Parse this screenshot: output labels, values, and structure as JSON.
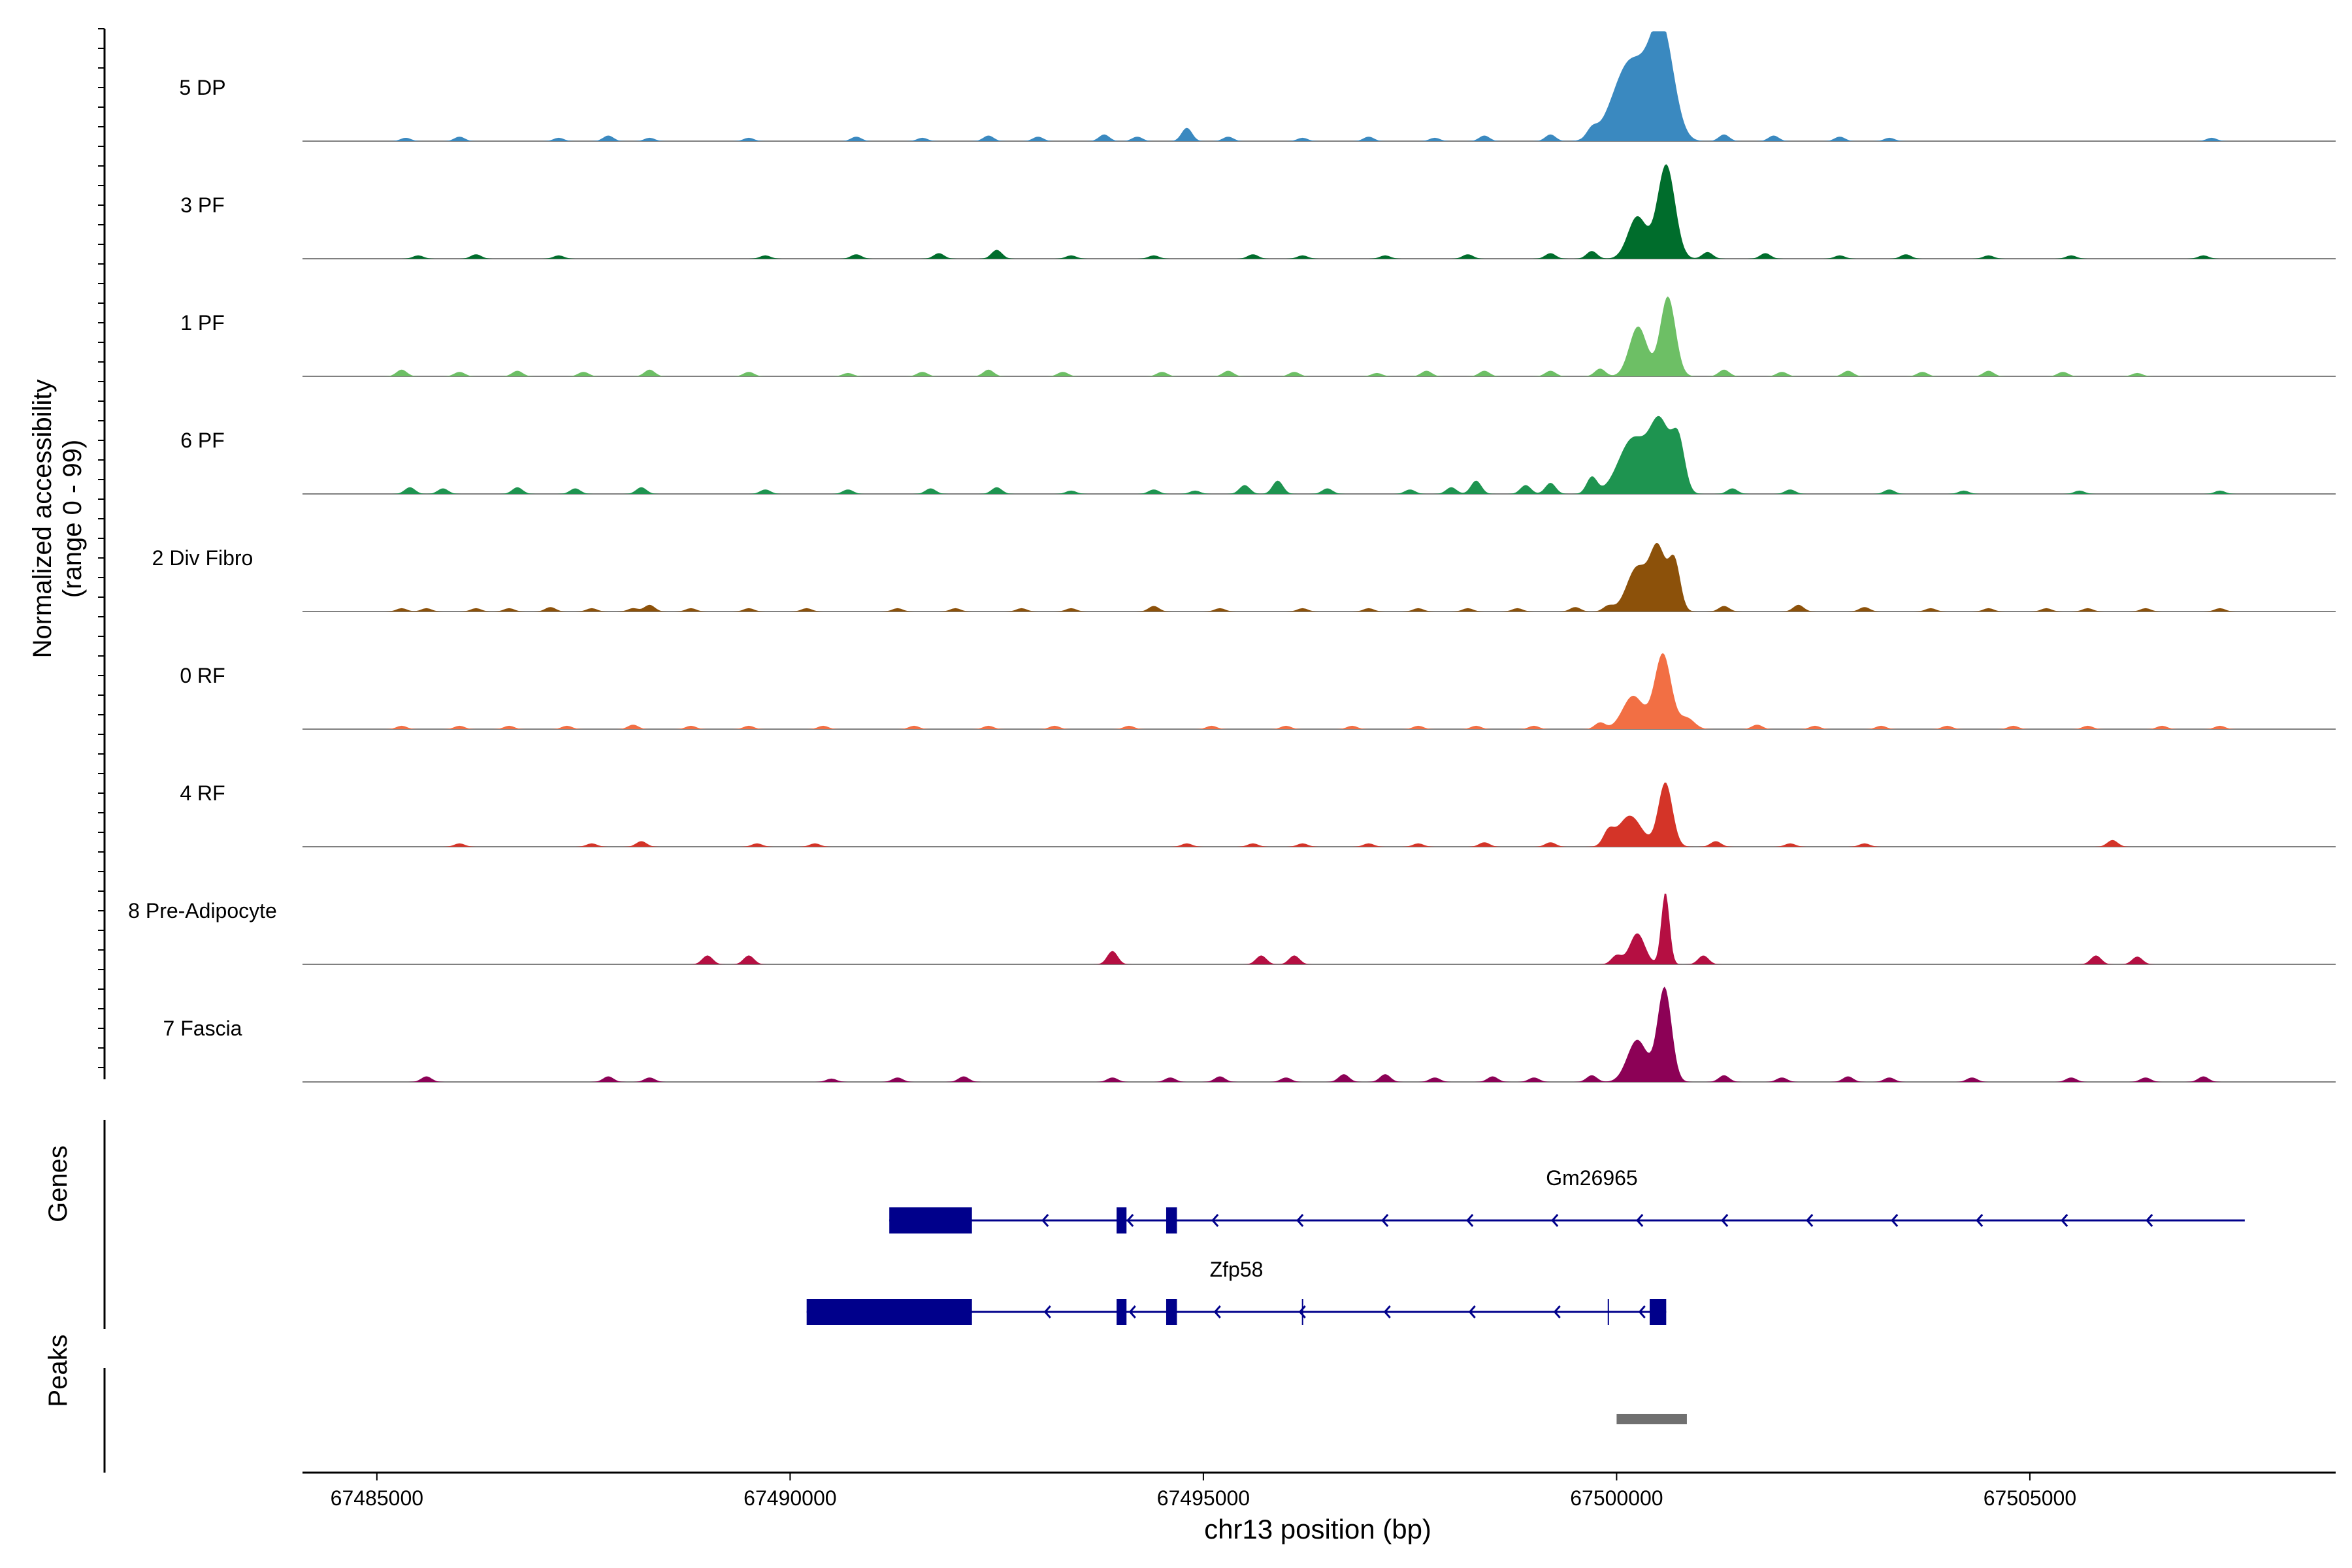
{
  "chart_data": {
    "type": "area",
    "title": "",
    "ylabel_line1": "Normalized accessibility",
    "ylabel_line2": "(range 0 - 99)",
    "xlabel": "chr13 position (bp)",
    "xlim": [
      67484100,
      67508700
    ],
    "ylim": [
      0,
      99
    ],
    "x_ticks": [
      67485000,
      67490000,
      67495000,
      67500000,
      67505000
    ],
    "x_tick_labels": [
      "67485000",
      "67490000",
      "67495000",
      "67500000",
      "67505000"
    ],
    "tracks": [
      {
        "name": "5 DP",
        "color": "#3a89c0",
        "peaks": [
          [
            67500170,
            300,
            72
          ],
          [
            67500550,
            200,
            95
          ]
        ],
        "noise": [
          [
            67485350,
            3
          ],
          [
            67486000,
            4
          ],
          [
            67487200,
            3
          ],
          [
            67487800,
            5
          ],
          [
            67488300,
            3
          ],
          [
            67489500,
            3
          ],
          [
            67490800,
            4
          ],
          [
            67491600,
            3
          ],
          [
            67492400,
            5
          ],
          [
            67493000,
            4
          ],
          [
            67493800,
            6
          ],
          [
            67494200,
            4
          ],
          [
            67494800,
            12
          ],
          [
            67495300,
            4
          ],
          [
            67496200,
            3
          ],
          [
            67497000,
            4
          ],
          [
            67497800,
            3
          ],
          [
            67498400,
            5
          ],
          [
            67499200,
            6
          ],
          [
            67499700,
            8
          ],
          [
            67501300,
            6
          ],
          [
            67501900,
            5
          ],
          [
            67502700,
            4
          ],
          [
            67503300,
            3
          ],
          [
            67507200,
            3
          ]
        ]
      },
      {
        "name": "3 PF",
        "color": "#006d2c",
        "peaks": [
          [
            67500250,
            160,
            38
          ],
          [
            67500600,
            150,
            85
          ]
        ],
        "noise": [
          [
            67485500,
            3
          ],
          [
            67486200,
            4
          ],
          [
            67487200,
            3
          ],
          [
            67489700,
            3
          ],
          [
            67490800,
            4
          ],
          [
            67491800,
            5
          ],
          [
            67492500,
            8
          ],
          [
            67493400,
            3
          ],
          [
            67494400,
            3
          ],
          [
            67495600,
            4
          ],
          [
            67496200,
            3
          ],
          [
            67497200,
            3
          ],
          [
            67498200,
            4
          ],
          [
            67499200,
            5
          ],
          [
            67499700,
            7
          ],
          [
            67501100,
            6
          ],
          [
            67501800,
            5
          ],
          [
            67502700,
            3
          ],
          [
            67503500,
            4
          ],
          [
            67504500,
            3
          ],
          [
            67505500,
            3
          ],
          [
            67507100,
            3
          ]
        ]
      },
      {
        "name": "1 PF",
        "color": "#6dbf65",
        "peaks": [
          [
            67500260,
            150,
            45
          ],
          [
            67500620,
            130,
            72
          ]
        ],
        "noise": [
          [
            67485300,
            6
          ],
          [
            67486000,
            4
          ],
          [
            67486700,
            5
          ],
          [
            67487500,
            4
          ],
          [
            67488300,
            6
          ],
          [
            67489500,
            4
          ],
          [
            67490700,
            3
          ],
          [
            67491600,
            4
          ],
          [
            67492400,
            6
          ],
          [
            67493300,
            4
          ],
          [
            67494500,
            4
          ],
          [
            67495300,
            5
          ],
          [
            67496100,
            4
          ],
          [
            67497100,
            3
          ],
          [
            67497700,
            5
          ],
          [
            67498400,
            5
          ],
          [
            67499200,
            5
          ],
          [
            67499800,
            7
          ],
          [
            67501300,
            6
          ],
          [
            67502000,
            4
          ],
          [
            67502800,
            5
          ],
          [
            67503700,
            4
          ],
          [
            67504500,
            5
          ],
          [
            67505400,
            4
          ],
          [
            67506300,
            3
          ]
        ]
      },
      {
        "name": "6 PF",
        "color": "#1e9450",
        "peaks": [
          [
            67500200,
            250,
            50
          ],
          [
            67500530,
            170,
            60
          ],
          [
            67500750,
            110,
            45
          ]
        ],
        "noise": [
          [
            67485400,
            6
          ],
          [
            67485800,
            5
          ],
          [
            67486700,
            6
          ],
          [
            67487400,
            5
          ],
          [
            67488200,
            6
          ],
          [
            67489700,
            4
          ],
          [
            67490700,
            4
          ],
          [
            67491700,
            5
          ],
          [
            67492500,
            6
          ],
          [
            67493400,
            3
          ],
          [
            67494400,
            4
          ],
          [
            67494900,
            3
          ],
          [
            67495500,
            8
          ],
          [
            67495900,
            12
          ],
          [
            67496500,
            5
          ],
          [
            67497500,
            4
          ],
          [
            67498000,
            6
          ],
          [
            67498300,
            12
          ],
          [
            67498900,
            8
          ],
          [
            67499200,
            10
          ],
          [
            67499700,
            15
          ],
          [
            67501400,
            5
          ],
          [
            67502100,
            4
          ],
          [
            67503300,
            4
          ],
          [
            67504200,
            3
          ],
          [
            67505600,
            3
          ],
          [
            67507300,
            3
          ]
        ]
      },
      {
        "name": "2 Div Fibro",
        "color": "#8c510a",
        "peaks": [
          [
            67500250,
            180,
            40
          ],
          [
            67500500,
            130,
            55
          ],
          [
            67500700,
            100,
            45
          ]
        ],
        "noise": [
          [
            67485300,
            3
          ],
          [
            67485600,
            3
          ],
          [
            67486200,
            3
          ],
          [
            67486600,
            3
          ],
          [
            67487100,
            4
          ],
          [
            67487600,
            3
          ],
          [
            67488100,
            3
          ],
          [
            67488300,
            6
          ],
          [
            67488800,
            3
          ],
          [
            67489500,
            3
          ],
          [
            67490200,
            3
          ],
          [
            67491300,
            3
          ],
          [
            67492000,
            3
          ],
          [
            67492800,
            3
          ],
          [
            67493400,
            3
          ],
          [
            67494400,
            5
          ],
          [
            67495200,
            3
          ],
          [
            67496200,
            3
          ],
          [
            67497000,
            3
          ],
          [
            67497600,
            3
          ],
          [
            67498200,
            3
          ],
          [
            67498800,
            3
          ],
          [
            67499500,
            4
          ],
          [
            67499900,
            5
          ],
          [
            67501300,
            5
          ],
          [
            67502200,
            6
          ],
          [
            67503000,
            4
          ],
          [
            67503800,
            3
          ],
          [
            67504500,
            3
          ],
          [
            67505200,
            3
          ],
          [
            67505700,
            3
          ],
          [
            67506400,
            3
          ],
          [
            67507300,
            3
          ]
        ]
      },
      {
        "name": "0 RF",
        "color": "#f26f44",
        "peaks": [
          [
            67500200,
            180,
            30
          ],
          [
            67500560,
            140,
            68
          ],
          [
            67500850,
            130,
            10
          ]
        ],
        "noise": [
          [
            67485300,
            3
          ],
          [
            67486000,
            3
          ],
          [
            67486600,
            3
          ],
          [
            67487300,
            3
          ],
          [
            67488100,
            4
          ],
          [
            67488800,
            3
          ],
          [
            67489500,
            3
          ],
          [
            67490400,
            3
          ],
          [
            67491500,
            3
          ],
          [
            67492400,
            3
          ],
          [
            67493200,
            3
          ],
          [
            67494100,
            3
          ],
          [
            67495100,
            3
          ],
          [
            67496000,
            3
          ],
          [
            67496800,
            3
          ],
          [
            67497600,
            3
          ],
          [
            67498300,
            3
          ],
          [
            67499000,
            3
          ],
          [
            67499800,
            6
          ],
          [
            67501700,
            4
          ],
          [
            67502400,
            3
          ],
          [
            67503200,
            3
          ],
          [
            67504000,
            3
          ],
          [
            67504800,
            3
          ],
          [
            67505700,
            3
          ],
          [
            67506600,
            3
          ],
          [
            67507300,
            3
          ]
        ]
      },
      {
        "name": "4 RF",
        "color": "#d43428",
        "peaks": [
          [
            67500160,
            200,
            28
          ],
          [
            67500590,
            120,
            58
          ]
        ],
        "noise": [
          [
            67486000,
            3
          ],
          [
            67487600,
            3
          ],
          [
            67488200,
            5
          ],
          [
            67489600,
            3
          ],
          [
            67490300,
            3
          ],
          [
            67494800,
            3
          ],
          [
            67495600,
            3
          ],
          [
            67496200,
            3
          ],
          [
            67497000,
            3
          ],
          [
            67497600,
            3
          ],
          [
            67498400,
            4
          ],
          [
            67499200,
            4
          ],
          [
            67499900,
            12
          ],
          [
            67501200,
            5
          ],
          [
            67502100,
            3
          ],
          [
            67503000,
            3
          ],
          [
            67506000,
            6
          ]
        ]
      },
      {
        "name": "8 Pre-Adipocyte",
        "color": "#b50f42",
        "peaks": [
          [
            67500250,
            130,
            28
          ],
          [
            67500590,
            70,
            65
          ]
        ],
        "noise": [
          [
            67489000,
            8
          ],
          [
            67489500,
            8
          ],
          [
            67493900,
            12
          ],
          [
            67495700,
            8
          ],
          [
            67496100,
            8
          ],
          [
            67500000,
            8
          ],
          [
            67501050,
            8
          ],
          [
            67505800,
            8
          ],
          [
            67506300,
            7
          ]
        ]
      },
      {
        "name": "7 Fascia",
        "color": "#8c0156",
        "peaks": [
          [
            67500250,
            170,
            38
          ],
          [
            67500580,
            120,
            85
          ]
        ],
        "noise": [
          [
            67485600,
            5
          ],
          [
            67487800,
            5
          ],
          [
            67488300,
            4
          ],
          [
            67490500,
            3
          ],
          [
            67491300,
            4
          ],
          [
            67492100,
            5
          ],
          [
            67493900,
            4
          ],
          [
            67494600,
            4
          ],
          [
            67495200,
            5
          ],
          [
            67496000,
            4
          ],
          [
            67496700,
            7
          ],
          [
            67497200,
            7
          ],
          [
            67497800,
            4
          ],
          [
            67498500,
            5
          ],
          [
            67499000,
            4
          ],
          [
            67499700,
            6
          ],
          [
            67501300,
            6
          ],
          [
            67502000,
            4
          ],
          [
            67502800,
            5
          ],
          [
            67503300,
            4
          ],
          [
            67504300,
            4
          ],
          [
            67505500,
            4
          ],
          [
            67506400,
            4
          ],
          [
            67507100,
            5
          ]
        ]
      }
    ],
    "genes": [
      {
        "name": "Gm26965",
        "color": "#00008b",
        "start": 67491200,
        "end": 67507600,
        "strand": "-",
        "exons": [
          [
            67491200,
            67492200
          ],
          [
            67493950,
            67494070
          ],
          [
            67494550,
            67494680
          ]
        ],
        "introns_extra": []
      },
      {
        "name": "Zfp58",
        "color": "#00008b",
        "start": 67490200,
        "end": 67500600,
        "strand": "-",
        "exons": [
          [
            67490200,
            67492200
          ],
          [
            67493950,
            67494070
          ],
          [
            67494550,
            67494680
          ],
          [
            67500400,
            67500600
          ]
        ],
        "introns_extra": [
          67496200,
          67499900
        ]
      }
    ],
    "peak_regions": [
      [
        67500000,
        67500850
      ]
    ],
    "peak_color": "#707070",
    "panel_labels": {
      "genes": "Genes",
      "peaks": "Peaks"
    }
  }
}
